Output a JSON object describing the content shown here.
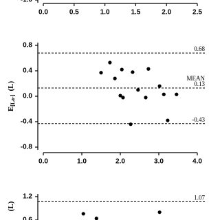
{
  "chart_data": [
    {
      "type": "scatter",
      "xlim": [
        0,
        2.5
      ],
      "xticks": [
        {
          "value": 0,
          "label": "0.0"
        },
        {
          "value": 0.5,
          "label": "0.5"
        },
        {
          "value": 1,
          "label": "1.0"
        },
        {
          "value": 1.5,
          "label": "1.5"
        },
        {
          "value": 2,
          "label": "2.0"
        },
        {
          "value": 2.5,
          "label": "2.5"
        }
      ],
      "ylim": [
        -1,
        1
      ],
      "yticks": [
        {
          "value": -1,
          "label": "-1.0"
        }
      ],
      "x": [],
      "y": [],
      "hlines": []
    },
    {
      "type": "scatter",
      "ylabel": "E",
      "ylabel_sub": "[La-]",
      "ylabel_unit": "(L)",
      "xlim": [
        0,
        4
      ],
      "xticks": [
        {
          "value": 0,
          "label": "0.0"
        },
        {
          "value": 1,
          "label": "1.0"
        },
        {
          "value": 2,
          "label": "2.0"
        },
        {
          "value": 3,
          "label": "3.0"
        },
        {
          "value": 4,
          "label": "4.0"
        }
      ],
      "ylim": [
        -0.8,
        0.8
      ],
      "yticks": [
        {
          "value": -0.8,
          "label": "-0.8"
        },
        {
          "value": -0.4,
          "label": "-0.4"
        },
        {
          "value": 0,
          "label": "0.0"
        },
        {
          "value": 0.4,
          "label": "0.4"
        },
        {
          "value": 0.8,
          "label": "0.8"
        }
      ],
      "x": [
        1.73,
        1.5,
        2.04,
        1.86,
        2.32,
        2.73,
        2.0,
        2.07,
        2.46,
        2.66,
        3.02,
        3.13,
        3.46,
        2.27,
        3.23
      ],
      "y": [
        0.53,
        0.37,
        0.42,
        0.28,
        0.38,
        0.43,
        0.01,
        -0.02,
        0.1,
        -0.02,
        0.16,
        0.03,
        0.03,
        -0.44,
        -0.38
      ],
      "hlines": [
        {
          "value": 0.68
        },
        {
          "value": 0.13,
          "label": "MEAN"
        },
        {
          "value": -0.43
        }
      ]
    },
    {
      "type": "scatter",
      "ylabel_unit": "(L)",
      "xlim": [
        0,
        4
      ],
      "ylim": [
        0.6,
        1.2
      ],
      "yticks": [
        {
          "value": 0.6,
          "label": "0.6"
        },
        {
          "value": 1.2,
          "label": "1.2"
        }
      ],
      "x": [
        1.04,
        1.38,
        3.02
      ],
      "y": [
        0.76,
        0.64,
        0.8
      ],
      "hlines": [
        {
          "value": 1.07
        }
      ]
    }
  ]
}
